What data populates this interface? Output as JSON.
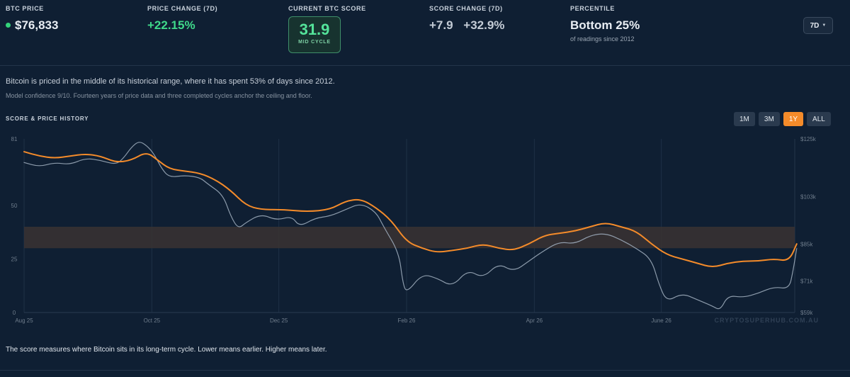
{
  "stats": {
    "btc_price": {
      "label": "BTC PRICE",
      "value": "$76,833"
    },
    "price_change": {
      "label": "PRICE CHANGE (7D)",
      "value": "+22.15%"
    },
    "current_score": {
      "label": "CURRENT BTC SCORE",
      "value": "31.9",
      "sub": "MID CYCLE"
    },
    "score_change": {
      "label": "SCORE CHANGE (7D)",
      "value": "+7.9",
      "value2": "+32.9%"
    },
    "percentile": {
      "label": "PERCENTILE",
      "value": "Bottom 25%",
      "sub": "of readings since 2012"
    }
  },
  "period_select": {
    "label": "7D"
  },
  "description": {
    "line1": "Bitcoin is priced in the middle of its historical range, where it has spent 53% of days since 2012.",
    "line2": "Model confidence 9/10. Fourteen years of price data and three completed cycles anchor the ceiling and floor."
  },
  "history": {
    "title": "SCORE & PRICE HISTORY",
    "ranges": [
      {
        "label": "1M",
        "active": false
      },
      {
        "label": "3M",
        "active": false
      },
      {
        "label": "1Y",
        "active": true
      },
      {
        "label": "ALL",
        "active": false
      }
    ]
  },
  "footer_text": "The score measures where Bitcoin sits in its long-term cycle. Lower means earlier. Higher means later.",
  "colors": {
    "score": "#f48b2a",
    "price": "#9aa8b8",
    "band": "#3a3332",
    "accent_green": "#3fd98a"
  },
  "chart_data": {
    "type": "line",
    "watermark": "CRYPTOSUPERHUB.COM.AU",
    "x_ticks": [
      "Aug 25",
      "Oct 25",
      "Dec 25",
      "Feb 26",
      "Apr 26",
      "June 26"
    ],
    "x_tick_t": [
      0.0,
      0.167,
      0.333,
      0.5,
      0.667,
      0.833
    ],
    "left_axis": {
      "ticks": [
        "81",
        "50",
        "25",
        "0"
      ],
      "values": [
        81,
        50,
        25,
        0
      ],
      "range": [
        0,
        81
      ]
    },
    "right_axis": {
      "ticks": [
        "$125k",
        "$103k",
        "$85k",
        "$71k",
        "$59k"
      ],
      "values": [
        125,
        103,
        85,
        71,
        59
      ],
      "range": [
        59,
        125
      ]
    },
    "band": [
      30,
      40
    ],
    "series": [
      {
        "key": "score",
        "axis": "left",
        "points": [
          [
            0.0,
            75
          ],
          [
            0.02,
            73
          ],
          [
            0.04,
            72
          ],
          [
            0.06,
            73
          ],
          [
            0.08,
            74
          ],
          [
            0.1,
            73
          ],
          [
            0.12,
            70
          ],
          [
            0.14,
            71
          ],
          [
            0.16,
            75
          ],
          [
            0.175,
            71
          ],
          [
            0.19,
            67
          ],
          [
            0.21,
            66
          ],
          [
            0.23,
            65
          ],
          [
            0.25,
            62
          ],
          [
            0.27,
            57
          ],
          [
            0.29,
            50
          ],
          [
            0.31,
            48
          ],
          [
            0.34,
            48
          ],
          [
            0.37,
            47
          ],
          [
            0.4,
            48
          ],
          [
            0.42,
            52
          ],
          [
            0.44,
            53
          ],
          [
            0.46,
            49
          ],
          [
            0.48,
            43
          ],
          [
            0.5,
            33
          ],
          [
            0.52,
            30
          ],
          [
            0.54,
            28
          ],
          [
            0.56,
            29
          ],
          [
            0.58,
            30
          ],
          [
            0.6,
            32
          ],
          [
            0.62,
            30
          ],
          [
            0.64,
            29
          ],
          [
            0.66,
            32
          ],
          [
            0.68,
            36
          ],
          [
            0.7,
            37
          ],
          [
            0.72,
            38
          ],
          [
            0.74,
            40
          ],
          [
            0.76,
            42
          ],
          [
            0.78,
            40
          ],
          [
            0.8,
            38
          ],
          [
            0.82,
            32
          ],
          [
            0.84,
            27
          ],
          [
            0.86,
            25
          ],
          [
            0.88,
            23
          ],
          [
            0.9,
            21
          ],
          [
            0.92,
            23
          ],
          [
            0.94,
            24
          ],
          [
            0.96,
            24
          ],
          [
            0.98,
            25
          ],
          [
            1.0,
            24
          ],
          [
            1.01,
            32
          ]
        ]
      },
      {
        "key": "price",
        "axis": "left",
        "points": [
          [
            0.0,
            70
          ],
          [
            0.02,
            68
          ],
          [
            0.04,
            70
          ],
          [
            0.06,
            69
          ],
          [
            0.08,
            72
          ],
          [
            0.1,
            71
          ],
          [
            0.12,
            69
          ],
          [
            0.13,
            72
          ],
          [
            0.14,
            77
          ],
          [
            0.15,
            80
          ],
          [
            0.16,
            78
          ],
          [
            0.17,
            74
          ],
          [
            0.18,
            67
          ],
          [
            0.19,
            63
          ],
          [
            0.21,
            64
          ],
          [
            0.23,
            63
          ],
          [
            0.24,
            60
          ],
          [
            0.26,
            55
          ],
          [
            0.27,
            45
          ],
          [
            0.28,
            39
          ],
          [
            0.29,
            42
          ],
          [
            0.31,
            46
          ],
          [
            0.33,
            43
          ],
          [
            0.35,
            45
          ],
          [
            0.36,
            40
          ],
          [
            0.38,
            44
          ],
          [
            0.4,
            45
          ],
          [
            0.42,
            48
          ],
          [
            0.44,
            51
          ],
          [
            0.46,
            47
          ],
          [
            0.47,
            40
          ],
          [
            0.49,
            28
          ],
          [
            0.495,
            14
          ],
          [
            0.5,
            9
          ],
          [
            0.52,
            18
          ],
          [
            0.54,
            16
          ],
          [
            0.56,
            12
          ],
          [
            0.58,
            20
          ],
          [
            0.6,
            16
          ],
          [
            0.62,
            23
          ],
          [
            0.64,
            19
          ],
          [
            0.66,
            24
          ],
          [
            0.68,
            29
          ],
          [
            0.7,
            33
          ],
          [
            0.72,
            32
          ],
          [
            0.74,
            36
          ],
          [
            0.76,
            37
          ],
          [
            0.78,
            34
          ],
          [
            0.8,
            30
          ],
          [
            0.82,
            25
          ],
          [
            0.83,
            13
          ],
          [
            0.84,
            5
          ],
          [
            0.86,
            9
          ],
          [
            0.88,
            6
          ],
          [
            0.9,
            3
          ],
          [
            0.91,
            1
          ],
          [
            0.92,
            8
          ],
          [
            0.94,
            7
          ],
          [
            0.96,
            9
          ],
          [
            0.98,
            12
          ],
          [
            1.0,
            11
          ],
          [
            1.005,
            19
          ],
          [
            1.01,
            30
          ]
        ]
      }
    ]
  }
}
